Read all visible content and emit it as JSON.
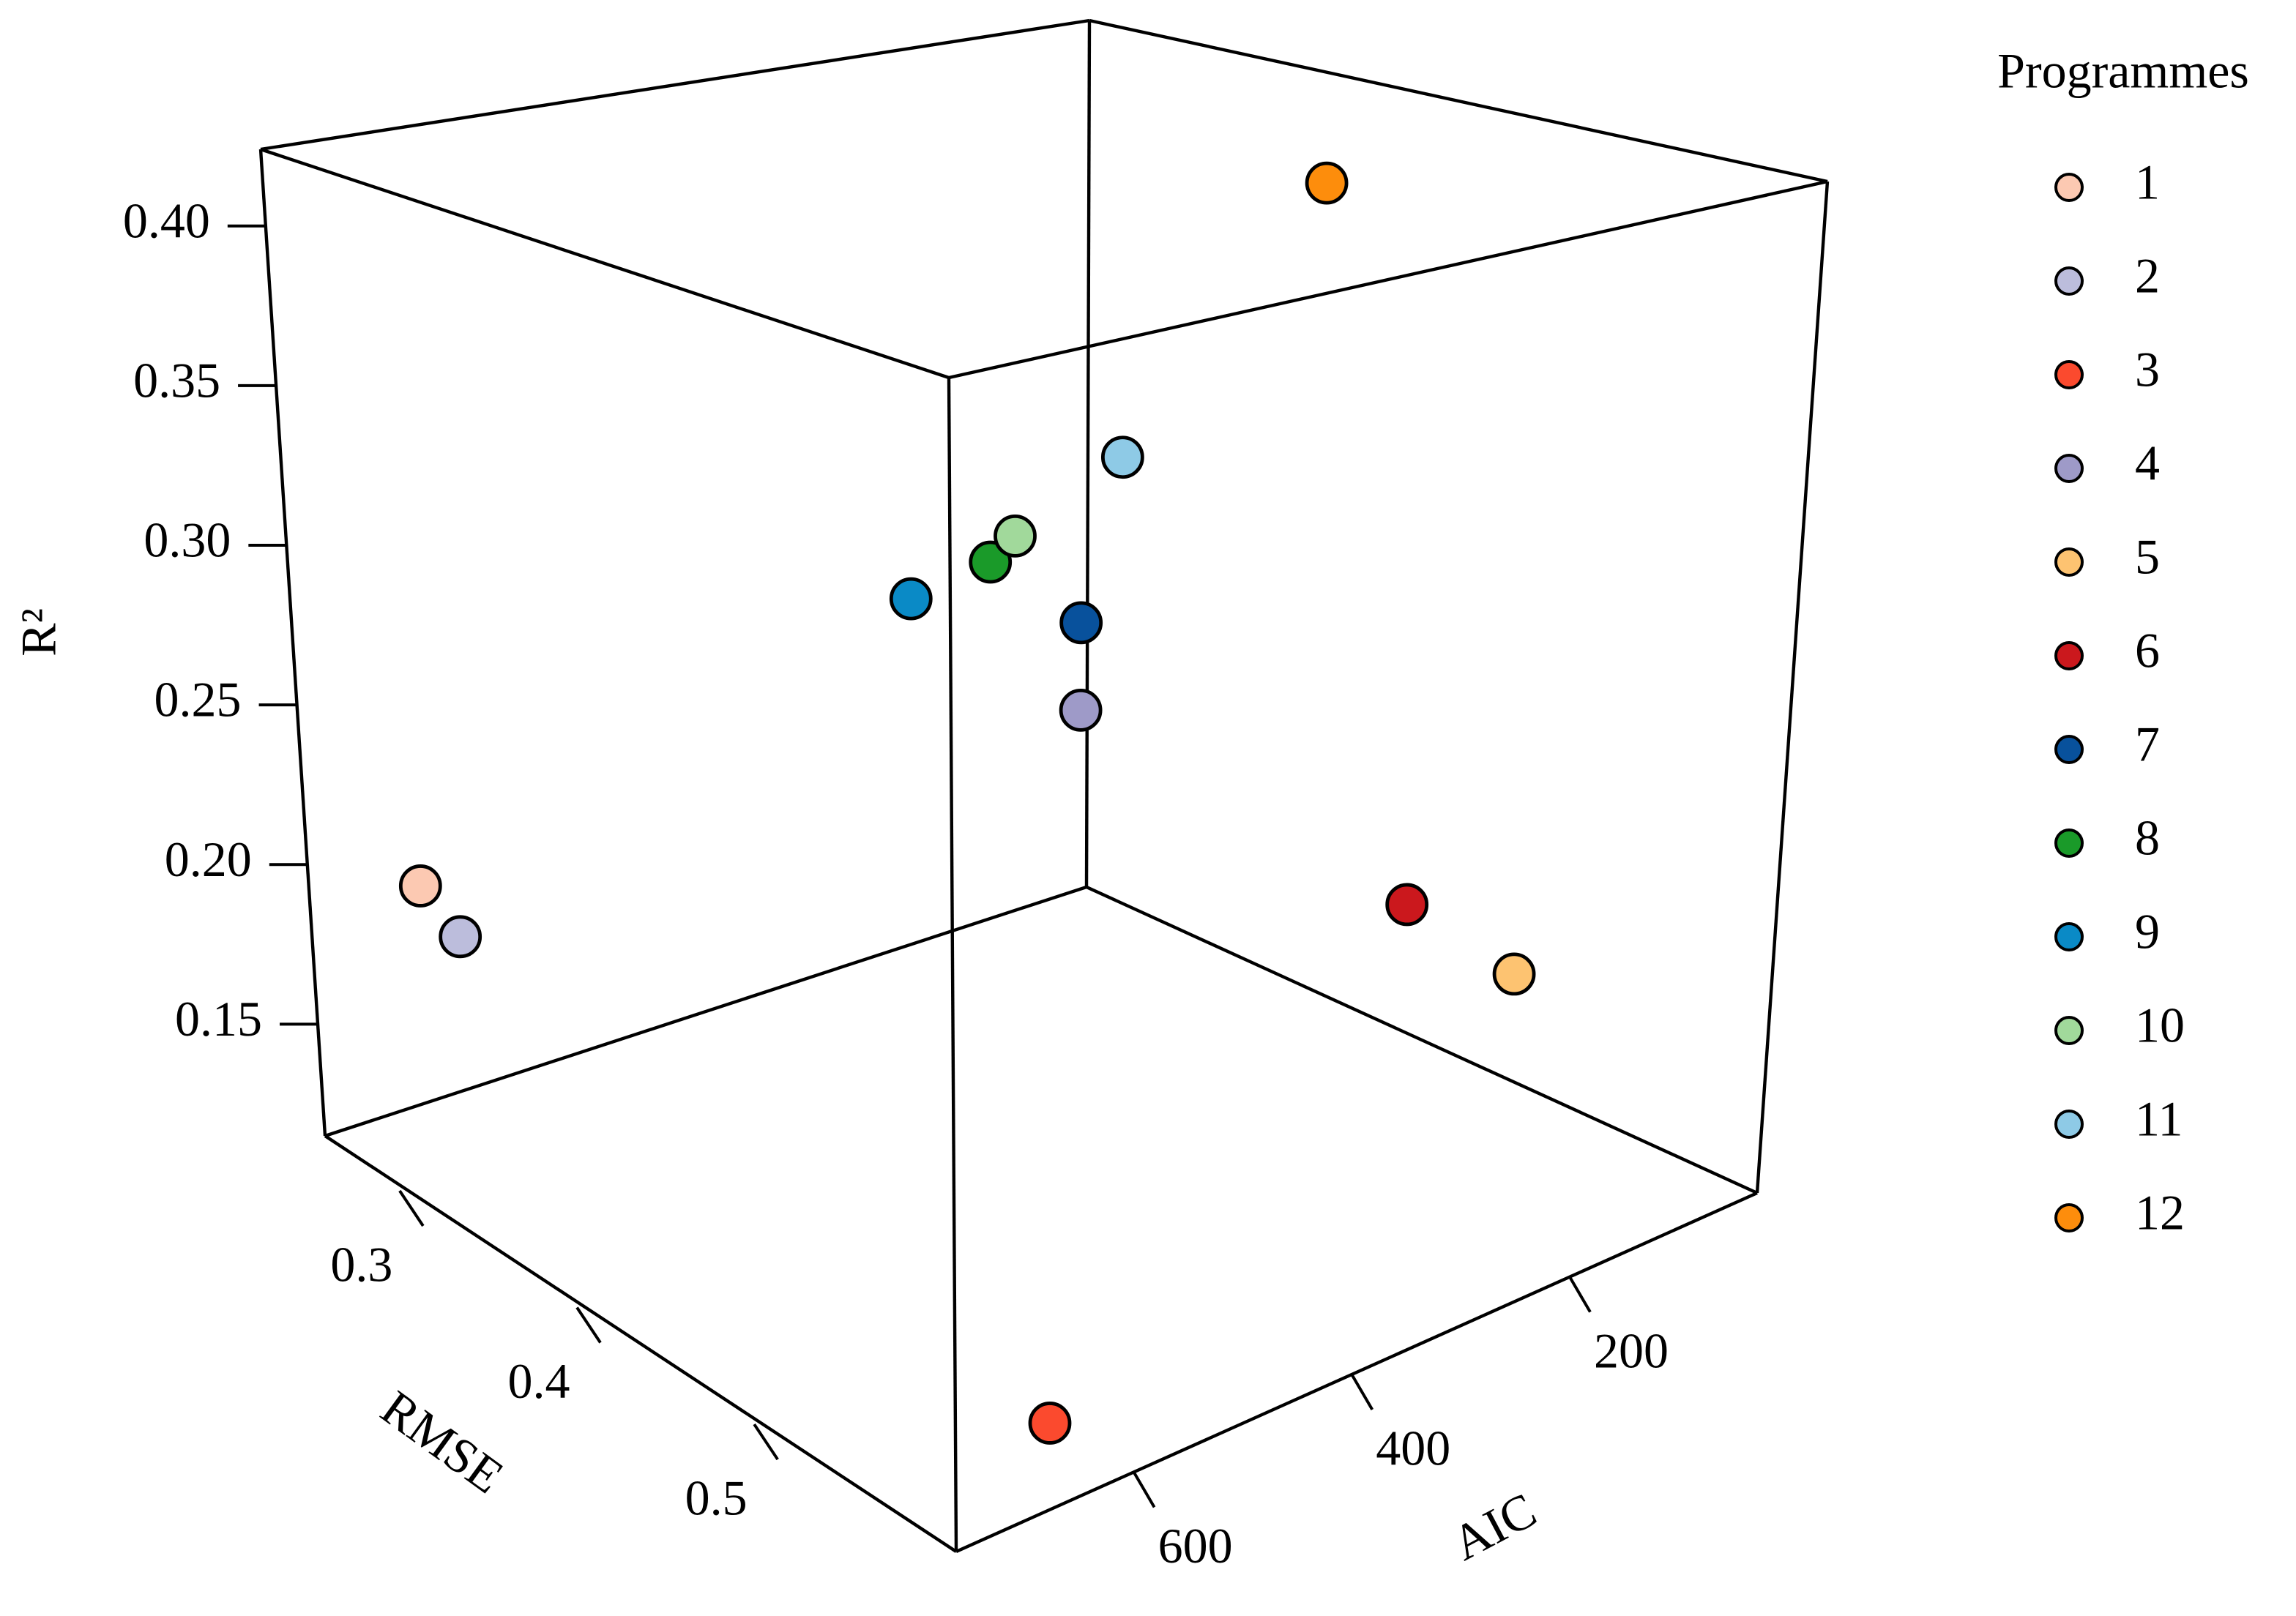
{
  "chart_data": {
    "type": "scatter3d",
    "legend_title": "Programmes",
    "x_label": "AIC",
    "y_label": "RMSE",
    "z_label": "R²",
    "xlim": [
      763,
      28
    ],
    "ylim": [
      0.248,
      0.604
    ],
    "zlim": [
      0.115,
      0.424
    ],
    "xticks": [
      200,
      400,
      600
    ],
    "yticks": [
      0.3,
      0.4,
      0.5
    ],
    "zticks": [
      0.15,
      {
        "value": 0.2,
        "label": "0.20"
      },
      0.25,
      {
        "value": 0.3,
        "label": "0.30"
      },
      0.35,
      {
        "value": 0.4,
        "label": "0.40"
      }
    ],
    "series": [
      {
        "name": "1",
        "color": "#fcc9b2",
        "x": 741,
        "y": 0.298,
        "z": 0.207
      },
      {
        "name": "2",
        "color": "#bcbddc",
        "x": 741,
        "y": 0.319,
        "z": 0.198
      },
      {
        "name": "3",
        "color": "#fb4a2e",
        "x": 631,
        "y": 0.576,
        "z": 0.124
      },
      {
        "name": "4",
        "color": "#9e9ac8",
        "x": 351,
        "y": 0.426,
        "z": 0.258
      },
      {
        "name": "5",
        "color": "#fdc371",
        "x": 138,
        "y": 0.533,
        "z": 0.179
      },
      {
        "name": "6",
        "color": "#cb181d",
        "x": 175,
        "y": 0.497,
        "z": 0.196
      },
      {
        "name": "7",
        "color": "#08519c",
        "x": 351,
        "y": 0.426,
        "z": 0.285
      },
      {
        "name": "8",
        "color": "#1a9a29",
        "x": 432,
        "y": 0.426,
        "z": 0.311
      },
      {
        "name": "9",
        "color": "#0a8ac6",
        "x": 484,
        "y": 0.415,
        "z": 0.302
      },
      {
        "name": "10",
        "color": "#a1d99b",
        "x": 410,
        "y": 0.426,
        "z": 0.317
      },
      {
        "name": "11",
        "color": "#8ecae6",
        "x": 315,
        "y": 0.426,
        "z": 0.333
      },
      {
        "name": "12",
        "color": "#fd8d0c",
        "x": 234,
        "y": 0.479,
        "z": 0.421
      }
    ]
  }
}
